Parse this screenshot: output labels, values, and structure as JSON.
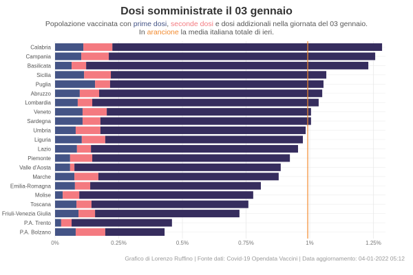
{
  "title": "Dosi somministrate il 03 gennaio",
  "subtitle": {
    "line1_pre": "Popolazione vaccinata con ",
    "prime": "prime dosi",
    "sep": ", ",
    "seconde": "seconde dosi",
    "line1_post": " e dosi addizionali nella giornata del 03 gennaio.",
    "line2_pre": "In ",
    "orange": "arancione",
    "line2_post": " la media italiana totale di ieri."
  },
  "footer": "Grafico di Lorenzo Ruffino | Fonte dati: Covid-19 Opendata Vaccini | Data aggiornamento: 04-01-2022 05:12",
  "colors": {
    "prime": "#445486",
    "seconde": "#f47a80",
    "addizionali": "#362d5e",
    "reference_line": "#f28a2e"
  },
  "chart_data": {
    "type": "bar",
    "orientation": "horizontal",
    "stacked": true,
    "title": "Dosi somministrate il 03 gennaio",
    "xlabel": "",
    "ylabel": "",
    "xlim": [
      0,
      1.3
    ],
    "x_unit": "%",
    "x_ticks": [
      0,
      0.25,
      0.5,
      0.75,
      1,
      1.25
    ],
    "x_tick_labels": [
      "0%",
      "0.25%",
      "0.5%",
      "0.75%",
      "1%",
      "1.25%"
    ],
    "grid": true,
    "categories": [
      "Calabria",
      "Campania",
      "Basilicata",
      "Sicilia",
      "Puglia",
      "Abruzzo",
      "Lombardia",
      "Veneto",
      "Sardegna",
      "Umbria",
      "Liguria",
      "Lazio",
      "Piemonte",
      "Valle d'Aosta",
      "Marche",
      "Emilia-Romagna",
      "Molise",
      "Toscana",
      "Friuli-Venezia Giulia",
      "P.A. Trento",
      "P.A. Bolzano"
    ],
    "series": [
      {
        "name": "prime dosi",
        "values": [
          0.111,
          0.103,
          0.065,
          0.114,
          0.157,
          0.097,
          0.089,
          0.108,
          0.108,
          0.081,
          0.105,
          0.086,
          0.059,
          0.059,
          0.076,
          0.078,
          0.03,
          0.084,
          0.092,
          0.024,
          0.081
        ]
      },
      {
        "name": "seconde dosi",
        "values": [
          0.114,
          0.108,
          0.057,
          0.105,
          0.059,
          0.076,
          0.057,
          0.095,
          0.07,
          0.097,
          0.092,
          0.055,
          0.087,
          0.017,
          0.094,
          0.06,
          0.065,
          0.059,
          0.065,
          0.041,
          0.116
        ]
      },
      {
        "name": "dosi addizionali",
        "values": [
          1.059,
          1.046,
          1.108,
          0.846,
          0.838,
          0.876,
          0.889,
          0.802,
          0.827,
          0.806,
          0.776,
          0.813,
          0.776,
          0.81,
          0.708,
          0.67,
          0.683,
          0.616,
          0.567,
          0.394,
          0.233
        ]
      }
    ],
    "reference_line": {
      "label": "media italiana totale di ieri",
      "value": 0.992
    }
  }
}
